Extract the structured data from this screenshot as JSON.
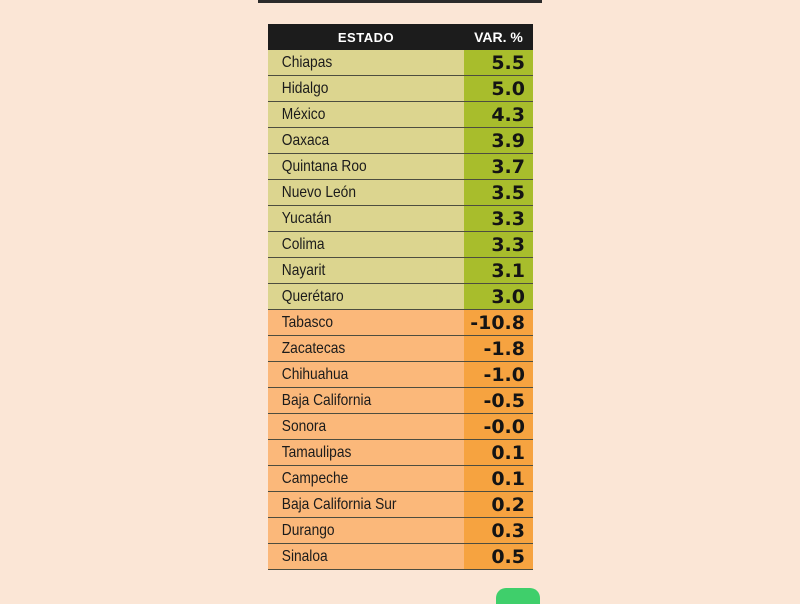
{
  "chart_data": {
    "type": "table",
    "columns": [
      "ESTADO",
      "VAR. %"
    ],
    "rows": [
      {
        "state": "Chiapas",
        "value": "5.5"
      },
      {
        "state": "Hidalgo",
        "value": "5.0"
      },
      {
        "state": "México",
        "value": "4.3"
      },
      {
        "state": "Oaxaca",
        "value": "3.9"
      },
      {
        "state": "Quintana Roo",
        "value": "3.7"
      },
      {
        "state": "Nuevo León",
        "value": "3.5"
      },
      {
        "state": "Yucatán",
        "value": "3.3"
      },
      {
        "state": "Colima",
        "value": "3.3"
      },
      {
        "state": "Nayarit",
        "value": "3.1"
      },
      {
        "state": "Querétaro",
        "value": "3.0"
      },
      {
        "state": "Tabasco",
        "value": "-10.8"
      },
      {
        "state": "Zacatecas",
        "value": "-1.8"
      },
      {
        "state": "Chihuahua",
        "value": "-1.0"
      },
      {
        "state": "Baja California",
        "value": "-0.5"
      },
      {
        "state": "Sonora",
        "value": "-0.0"
      },
      {
        "state": "Tamaulipas",
        "value": "0.1"
      },
      {
        "state": "Campeche",
        "value": "0.1"
      },
      {
        "state": "Baja California Sur",
        "value": "0.2"
      },
      {
        "state": "Durango",
        "value": "0.3"
      },
      {
        "state": "Sinaloa",
        "value": "0.5"
      }
    ],
    "groups": [
      {
        "rows": [
          0,
          9
        ],
        "color_state": "#dcd58f",
        "color_value": "#a8bd2c"
      },
      {
        "rows": [
          10,
          19
        ],
        "color_state": "#fbb87a",
        "color_value": "#f6a340"
      }
    ]
  },
  "colors": {
    "background": "#fbe6d6",
    "header": "#1c1c1c"
  }
}
